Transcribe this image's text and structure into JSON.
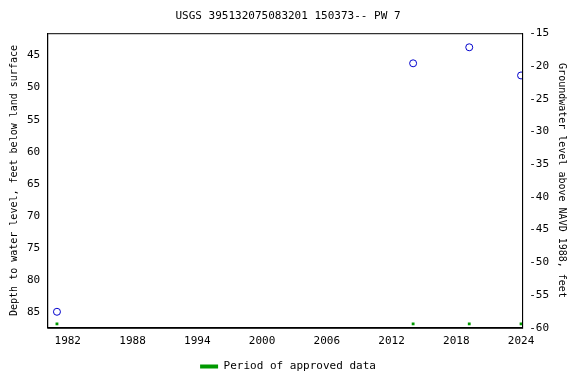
{
  "chart_data": {
    "type": "scatter",
    "title": "USGS 395132075083201 150373-- PW 7",
    "x_label": null,
    "y_label": "Depth to water level, feet below land surface",
    "y2_label": "Groundwater level above NAVD 1988, feet",
    "x": [
      1981.0,
      2014.0,
      2019.2,
      2024.0
    ],
    "series": [
      {
        "color": "#0000cc",
        "marker": "circle-open",
        "values": [
          85,
          46.2,
          43.7,
          48.1
        ]
      },
      {
        "name": "Period of approved data",
        "color": "#009900",
        "marker": "square",
        "values": [
          86.9,
          86.9,
          86.9,
          86.9
        ]
      }
    ],
    "xlim": [
      1980.1,
      2024.1
    ],
    "xticks": [
      1982,
      1988,
      1994,
      2000,
      2006,
      2012,
      2018,
      2024
    ],
    "ylim": [
      41.5,
      87.5
    ],
    "yticks": [
      45,
      50,
      55,
      60,
      65,
      70,
      75,
      80,
      85
    ],
    "y2lim": [
      -60,
      -15
    ],
    "y2ticks": [
      -60,
      -55,
      -50,
      -45,
      -40,
      -35,
      -30,
      -25,
      -20,
      -15
    ],
    "grid": false,
    "legend": "bottom"
  }
}
